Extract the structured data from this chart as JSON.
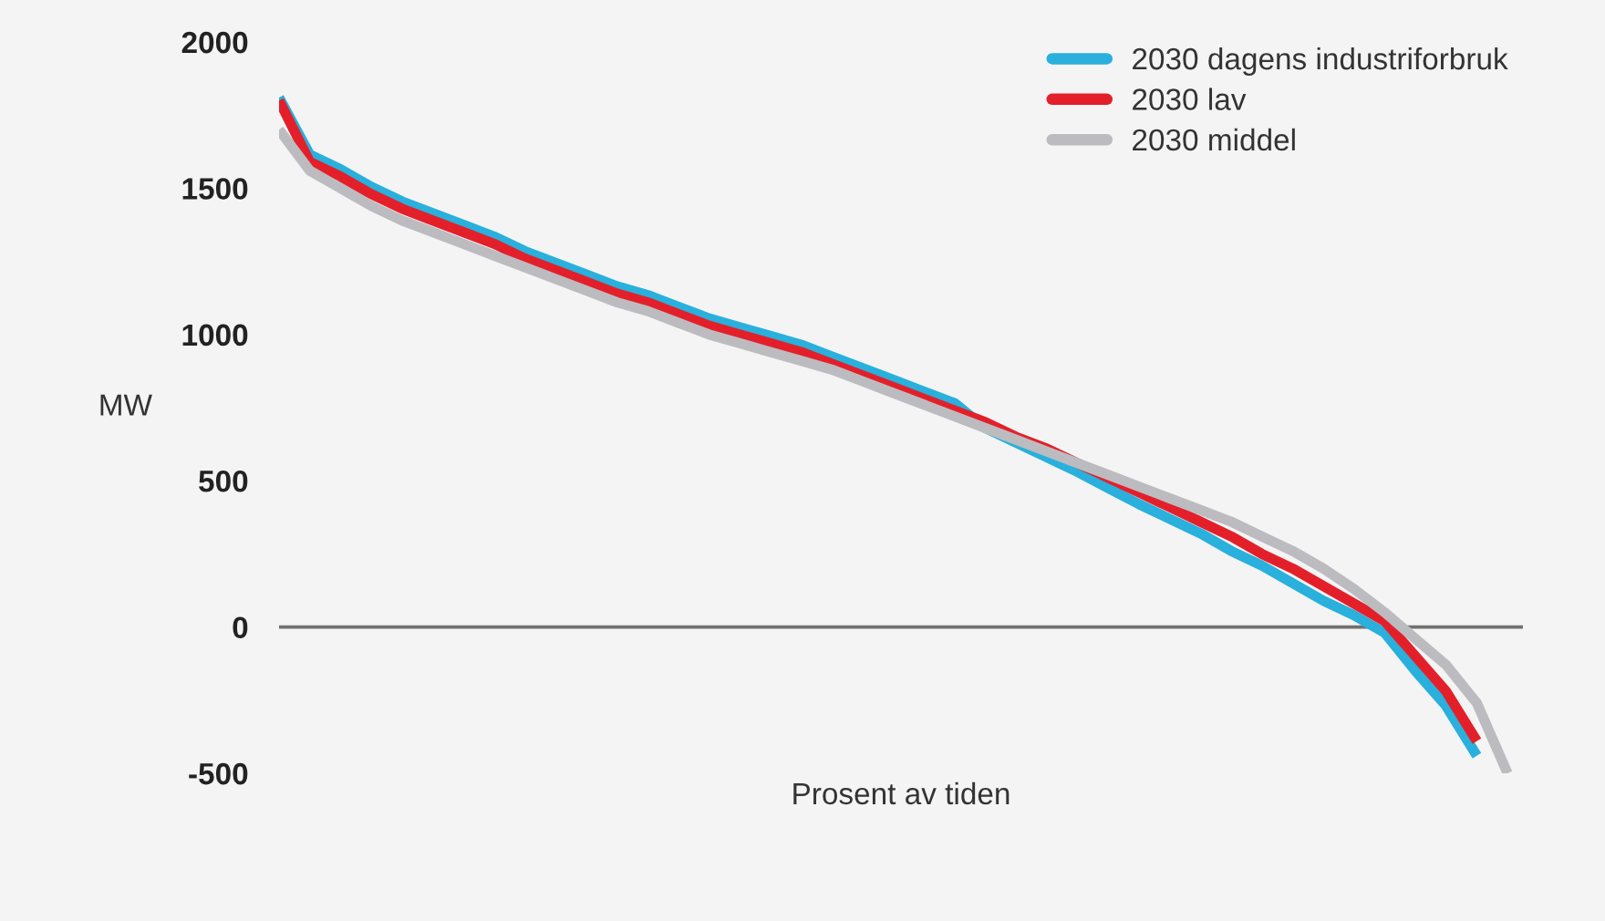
{
  "chart_data": {
    "type": "line",
    "xlabel": "Prosent av tiden",
    "ylabel": "MW",
    "categories": [
      null,
      null,
      null,
      null,
      null,
      null,
      null,
      null,
      null,
      null,
      null,
      null,
      null,
      null,
      null,
      null,
      null,
      null,
      null,
      null,
      null,
      null,
      null,
      null,
      null,
      null,
      null,
      null,
      null,
      null,
      null,
      null,
      null,
      null,
      null,
      null,
      null,
      null,
      null,
      null,
      null
    ],
    "series": [
      {
        "name": "2030 dagens industriforbruk",
        "color": "#29b0dc",
        "values": [
          1810,
          1615,
          1565,
          1505,
          1455,
          1415,
          1375,
          1335,
          1285,
          1245,
          1205,
          1165,
          1135,
          1095,
          1055,
          1025,
          995,
          965,
          925,
          885,
          845,
          805,
          765,
          680,
          630,
          580,
          530,
          475,
          420,
          370,
          320,
          260,
          210,
          150,
          90,
          40,
          -20,
          -150,
          -270,
          -440,
          null
        ]
      },
      {
        "name": "2030 lav",
        "color": "#e3202a",
        "values": [
          1800,
          1590,
          1540,
          1480,
          1430,
          1390,
          1350,
          1310,
          1260,
          1220,
          1180,
          1140,
          1110,
          1070,
          1030,
          1000,
          970,
          940,
          900,
          860,
          820,
          780,
          740,
          700,
          650,
          610,
          560,
          510,
          460,
          410,
          360,
          310,
          250,
          200,
          140,
          80,
          20,
          -100,
          -220,
          -390,
          null
        ]
      },
      {
        "name": "2030 middel",
        "color": "#bcbcc0",
        "values": [
          1700,
          1560,
          1500,
          1440,
          1390,
          1350,
          1310,
          1270,
          1230,
          1190,
          1150,
          1110,
          1080,
          1040,
          1000,
          970,
          940,
          910,
          880,
          840,
          800,
          760,
          720,
          680,
          640,
          600,
          560,
          520,
          480,
          440,
          400,
          360,
          310,
          260,
          200,
          130,
          50,
          -40,
          -130,
          -260,
          -500
        ]
      }
    ],
    "ylim": [
      -500,
      2000
    ],
    "yticks": [
      -500,
      0,
      500,
      1000,
      1500,
      2000
    ],
    "ref_lines": [
      {
        "axis": "y",
        "value": 0,
        "color": "#707070"
      }
    ],
    "legend": "top right",
    "grid": false,
    "marker": "none",
    "line_style": "solid"
  }
}
